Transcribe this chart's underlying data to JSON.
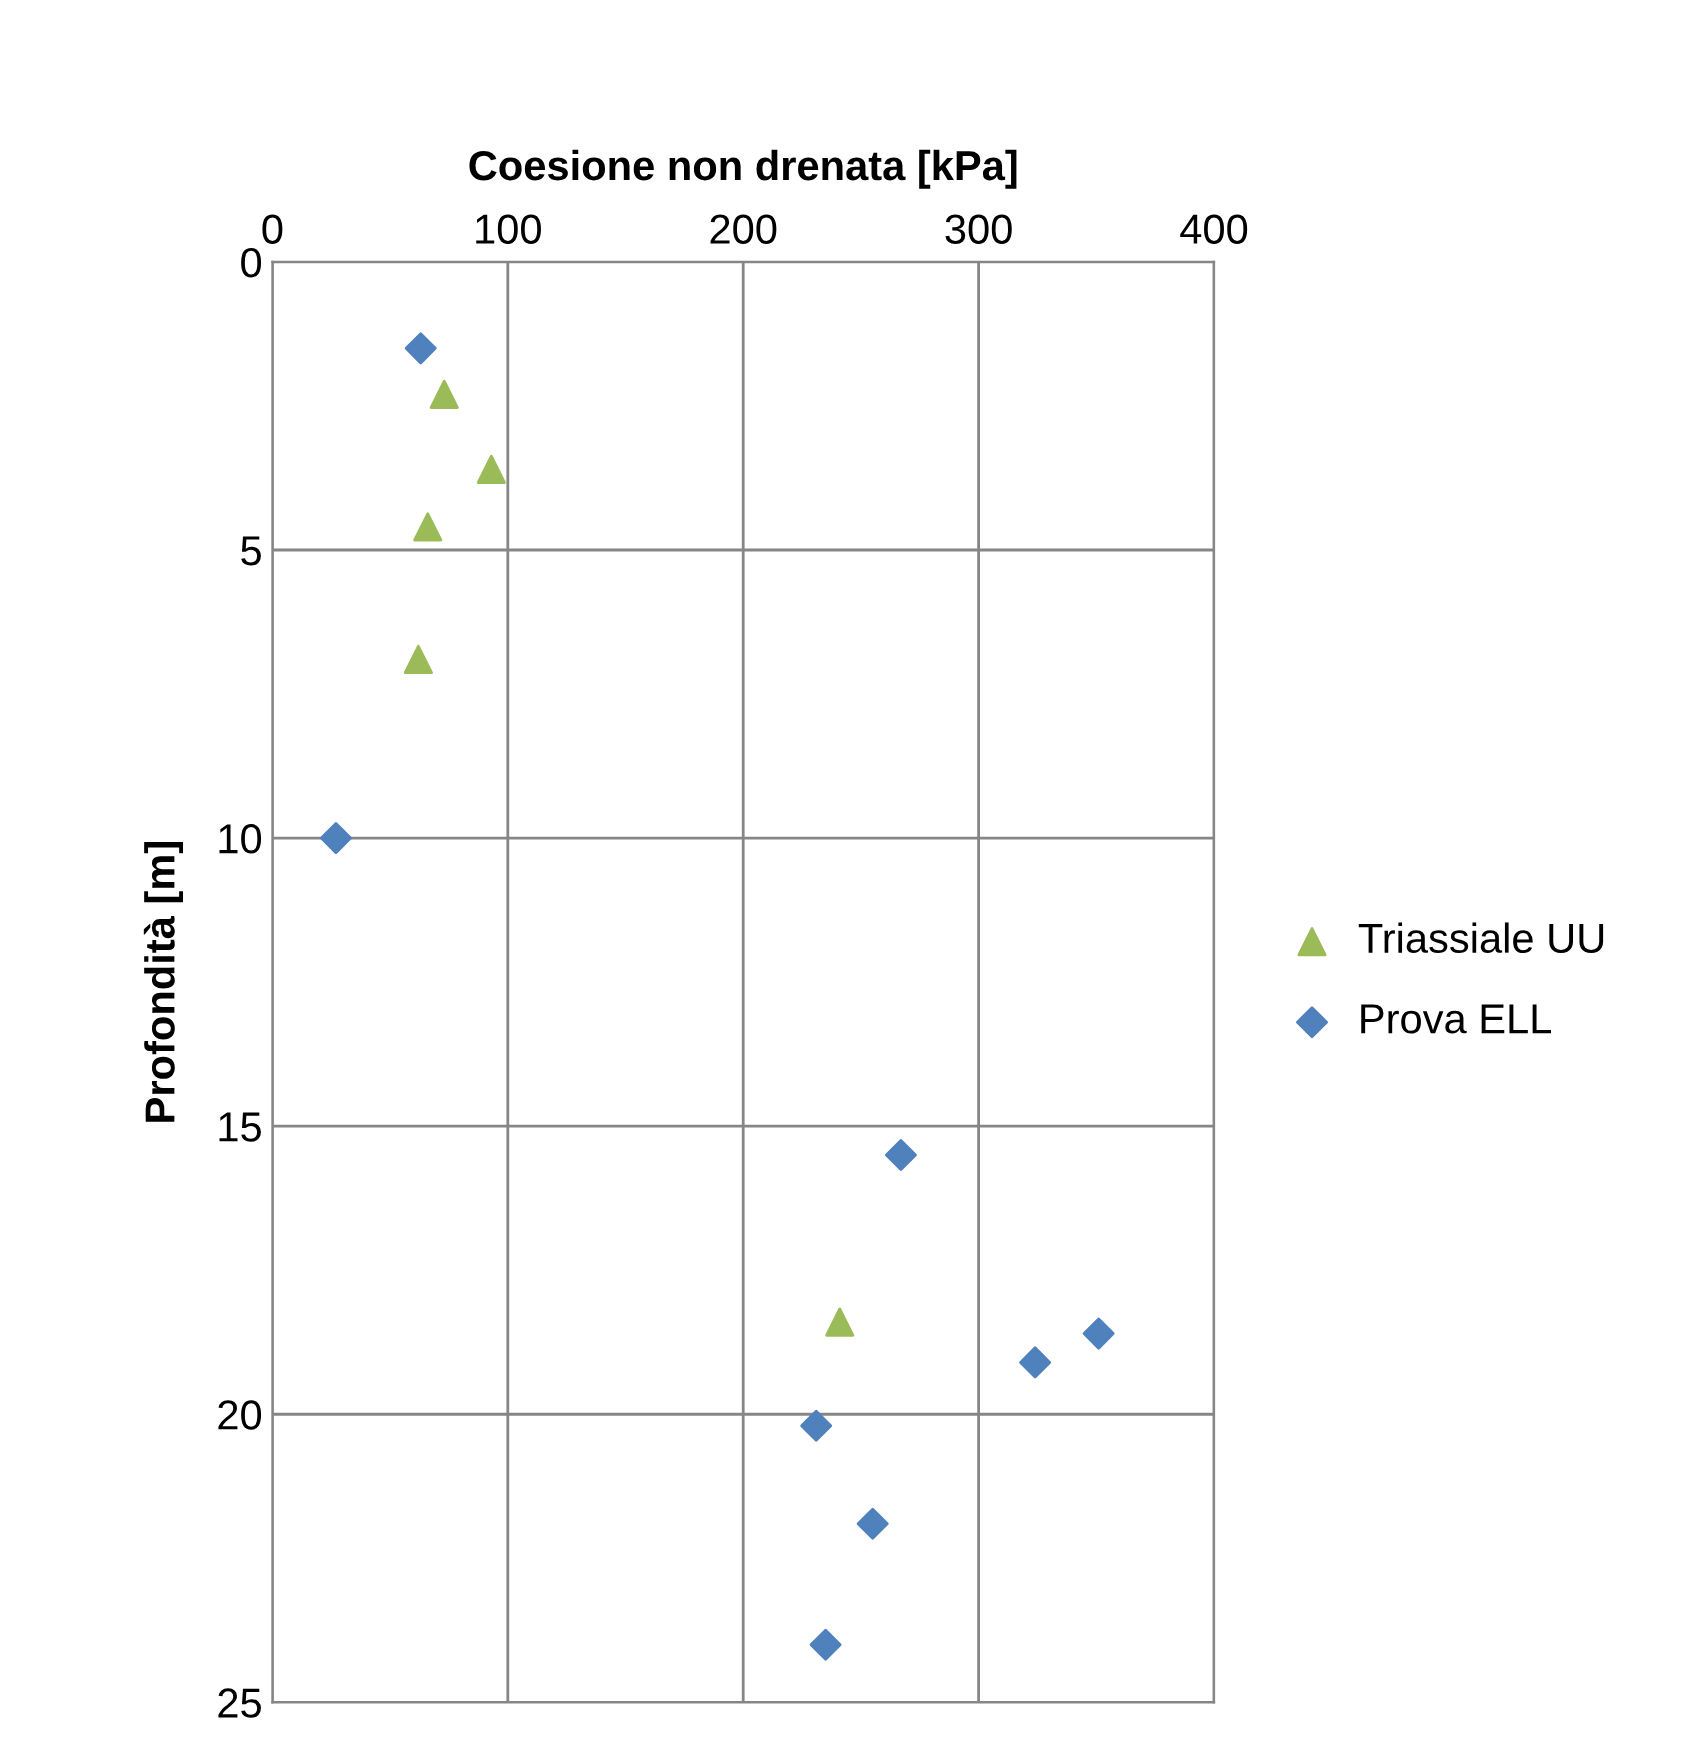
{
  "chart_data": {
    "type": "scatter",
    "xlabel": "Coesione non drenata [kPa]",
    "ylabel": "Profondità [m]",
    "xlim": [
      0,
      400
    ],
    "xticks": [
      0,
      100,
      200,
      300,
      400
    ],
    "ylim": [
      25,
      0
    ],
    "yticks": [
      0,
      5,
      10,
      15,
      20,
      25
    ],
    "grid": true,
    "legend": "right",
    "series": [
      {
        "name": "Triassiale UU",
        "color": "#9bbb59",
        "marker": "triangle",
        "x": [
          73,
          93,
          66,
          62,
          241
        ],
        "values": [
          2.3,
          3.6,
          4.6,
          6.9,
          18.4
        ]
      },
      {
        "name": "Prova ELL",
        "color": "#4f81bd",
        "marker": "diamond",
        "x": [
          63,
          27,
          267,
          351,
          324,
          231,
          255,
          235
        ],
        "values": [
          1.5,
          10,
          15.5,
          18.6,
          19.1,
          20.2,
          21.9,
          24.0
        ]
      }
    ]
  }
}
